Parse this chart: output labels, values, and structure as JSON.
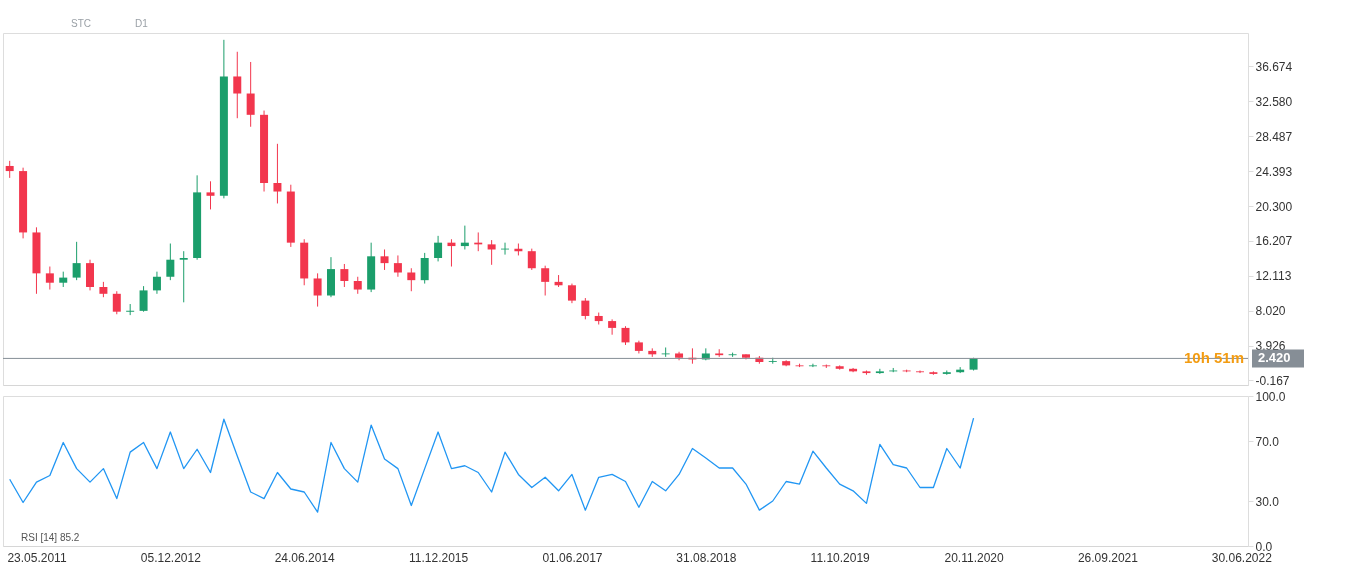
{
  "chart_data": [
    {
      "type": "candlestick",
      "categories": [
        null,
        null,
        "23.05.2011",
        null,
        null,
        null,
        null,
        null,
        null,
        null,
        null,
        null,
        "05.12.2012",
        null,
        null,
        null,
        null,
        null,
        null,
        null,
        null,
        null,
        "24.06.2014",
        null,
        null,
        null,
        null,
        null,
        null,
        null,
        null,
        null,
        "11.12.2015",
        null,
        null,
        null,
        null,
        null,
        null,
        null,
        null,
        null,
        "01.06.2017",
        null,
        null,
        null,
        null,
        null,
        null,
        null,
        null,
        null,
        "31.08.2018",
        null,
        null,
        null,
        null,
        null,
        null,
        null,
        null,
        null,
        "11.10.2019",
        null,
        null,
        null,
        null,
        null,
        null,
        null,
        null,
        null,
        "20.11.2020",
        null,
        null,
        null,
        null,
        null,
        null,
        null,
        null,
        null,
        "26.09.2021",
        null,
        null,
        null,
        null,
        null,
        null,
        null,
        null,
        null,
        "30.06.2022"
      ],
      "ohlc": [
        [
          25.0,
          25.6,
          23.6,
          24.4
        ],
        [
          24.4,
          24.8,
          16.5,
          17.2
        ],
        [
          17.2,
          17.8,
          10.0,
          12.4
        ],
        [
          12.4,
          13.2,
          10.5,
          11.3
        ],
        [
          11.3,
          12.6,
          10.8,
          11.9
        ],
        [
          11.9,
          16.1,
          11.6,
          13.6
        ],
        [
          13.6,
          14.0,
          10.4,
          10.8
        ],
        [
          10.8,
          11.4,
          9.6,
          10.0
        ],
        [
          10.0,
          10.3,
          7.6,
          7.9
        ],
        [
          7.9,
          8.8,
          7.5,
          8.0
        ],
        [
          8.0,
          10.9,
          7.9,
          10.4
        ],
        [
          10.4,
          12.6,
          10.0,
          12.0
        ],
        [
          12.0,
          15.9,
          11.6,
          14.0
        ],
        [
          14.0,
          15.0,
          9.0,
          14.2
        ],
        [
          14.2,
          23.9,
          14.0,
          21.9
        ],
        [
          21.9,
          23.2,
          19.9,
          21.5
        ],
        [
          21.5,
          39.8,
          21.2,
          35.5
        ],
        [
          35.5,
          38.4,
          30.6,
          33.5
        ],
        [
          33.5,
          37.2,
          29.6,
          31.0
        ],
        [
          31.0,
          31.5,
          22.0,
          23.0
        ],
        [
          23.0,
          27.6,
          20.6,
          22.0
        ],
        [
          22.0,
          22.8,
          15.5,
          16.0
        ],
        [
          16.0,
          16.4,
          11.0,
          11.8
        ],
        [
          11.8,
          12.4,
          8.5,
          9.8
        ],
        [
          9.8,
          14.3,
          9.6,
          12.9
        ],
        [
          12.9,
          13.5,
          10.8,
          11.5
        ],
        [
          11.5,
          12.0,
          10.0,
          10.5
        ],
        [
          10.5,
          16.0,
          10.2,
          14.4
        ],
        [
          14.4,
          15.2,
          12.8,
          13.6
        ],
        [
          13.6,
          14.5,
          12.0,
          12.5
        ],
        [
          12.5,
          13.0,
          10.3,
          11.6
        ],
        [
          11.6,
          14.8,
          11.2,
          14.2
        ],
        [
          14.2,
          16.8,
          13.8,
          16.0
        ],
        [
          16.0,
          16.4,
          13.2,
          15.6
        ],
        [
          15.6,
          18.0,
          15.2,
          16.0
        ],
        [
          16.0,
          17.2,
          15.0,
          15.8
        ],
        [
          15.8,
          16.3,
          13.4,
          15.2
        ],
        [
          15.2,
          16.0,
          14.6,
          15.3
        ],
        [
          15.3,
          15.9,
          14.5,
          15.0
        ],
        [
          15.0,
          15.3,
          12.8,
          13.0
        ],
        [
          13.0,
          13.3,
          9.8,
          11.4
        ],
        [
          11.4,
          12.2,
          10.8,
          11.0
        ],
        [
          11.0,
          11.2,
          8.9,
          9.2
        ],
        [
          9.2,
          9.5,
          7.0,
          7.4
        ],
        [
          7.4,
          7.8,
          6.4,
          6.8
        ],
        [
          6.8,
          7.0,
          5.2,
          6.0
        ],
        [
          6.0,
          6.2,
          4.0,
          4.3
        ],
        [
          4.3,
          4.5,
          3.0,
          3.3
        ],
        [
          3.3,
          3.6,
          2.6,
          2.9
        ],
        [
          2.9,
          3.7,
          2.6,
          3.0
        ],
        [
          3.0,
          3.2,
          2.2,
          2.5
        ],
        [
          2.5,
          3.6,
          1.8,
          2.3
        ],
        [
          2.3,
          3.6,
          2.2,
          3.0
        ],
        [
          3.0,
          3.5,
          2.6,
          2.8
        ],
        [
          2.8,
          3.1,
          2.6,
          2.9
        ],
        [
          2.9,
          2.9,
          2.3,
          2.5
        ],
        [
          2.5,
          2.7,
          1.8,
          2.0
        ],
        [
          2.0,
          2.5,
          1.8,
          2.1
        ],
        [
          2.1,
          2.2,
          1.5,
          1.6
        ],
        [
          1.6,
          1.8,
          1.4,
          1.5
        ],
        [
          1.5,
          1.8,
          1.4,
          1.6
        ],
        [
          1.6,
          1.7,
          1.3,
          1.5
        ],
        [
          1.5,
          1.6,
          1.1,
          1.2
        ],
        [
          1.2,
          1.3,
          0.8,
          0.9
        ],
        [
          0.9,
          1.0,
          0.5,
          0.7
        ],
        [
          0.7,
          1.2,
          0.6,
          0.9
        ],
        [
          0.9,
          1.3,
          0.8,
          1.0
        ],
        [
          1.0,
          1.1,
          0.8,
          0.9
        ],
        [
          0.9,
          1.0,
          0.7,
          0.8
        ],
        [
          0.8,
          0.9,
          0.5,
          0.6
        ],
        [
          0.6,
          1.0,
          0.5,
          0.8
        ],
        [
          0.8,
          1.4,
          0.7,
          1.1
        ],
        [
          1.1,
          2.5,
          1.0,
          2.42
        ],
        null,
        null,
        null,
        null,
        null,
        null,
        null,
        null,
        null,
        null,
        null,
        null,
        null,
        null,
        null,
        null,
        null,
        null,
        null,
        null
      ],
      "colors": [
        "#f2364d",
        "#f2364d",
        "#f2364d",
        "#f2364d",
        "#1b9e6b",
        "#1b9e6b",
        "#f2364d",
        "#f2364d",
        "#f2364d",
        "#1b9e6b",
        "#1b9e6b",
        "#1b9e6b",
        "#1b9e6b",
        "#1b9e6b",
        "#1b9e6b",
        "#f2364d",
        "#1b9e6b",
        "#f2364d",
        "#f2364d",
        "#f2364d",
        "#f2364d",
        "#f2364d",
        "#f2364d",
        "#f2364d",
        "#1b9e6b",
        "#f2364d",
        "#f2364d",
        "#1b9e6b",
        "#f2364d",
        "#f2364d",
        "#f2364d",
        "#1b9e6b",
        "#1b9e6b",
        "#f2364d",
        "#1b9e6b",
        "#f2364d",
        "#f2364d",
        "#1b9e6b",
        "#f2364d",
        "#f2364d",
        "#f2364d",
        "#f2364d",
        "#f2364d",
        "#f2364d",
        "#f2364d",
        "#f2364d",
        "#f2364d",
        "#f2364d",
        "#f2364d",
        "#1b9e6b",
        "#f2364d",
        "#f2364d",
        "#1b9e6b",
        "#f2364d",
        "#1b9e6b",
        "#f2364d",
        "#f2364d",
        "#1b9e6b",
        "#f2364d",
        "#f2364d",
        "#1b9e6b",
        "#f2364d",
        "#f2364d",
        "#f2364d",
        "#f2364d",
        "#1b9e6b",
        "#1b9e6b",
        "#f2364d",
        "#f2364d",
        "#f2364d",
        "#1b9e6b",
        "#1b9e6b",
        "#1b9e6b",
        null,
        null,
        null,
        null,
        null,
        null,
        null,
        null,
        null,
        null,
        null,
        null,
        null,
        null,
        null,
        null,
        null,
        null,
        null,
        null
      ],
      "ylim": [
        -0.7,
        40.6
      ],
      "yticks": [
        -0.167,
        3.926,
        {
          "value": 8.02,
          "label": "8.020"
        },
        12.113,
        16.207,
        {
          "value": 20.3,
          "label": "20.300"
        },
        24.393,
        28.487,
        {
          "value": 32.58,
          "label": "32.580"
        },
        36.674
      ],
      "ref_lines": [
        {
          "axis": "y",
          "value": 2.42,
          "label": "2.420",
          "color": "#868e96"
        }
      ],
      "annotations": [
        "STC",
        "D1",
        "10h 51m"
      ],
      "tick_labels": "y",
      "grid": false,
      "legend": false
    },
    {
      "type": "line",
      "categories": [
        null,
        null,
        "23.05.2011",
        null,
        null,
        null,
        null,
        null,
        null,
        null,
        null,
        null,
        "05.12.2012",
        null,
        null,
        null,
        null,
        null,
        null,
        null,
        null,
        null,
        "24.06.2014",
        null,
        null,
        null,
        null,
        null,
        null,
        null,
        null,
        null,
        "11.12.2015",
        null,
        null,
        null,
        null,
        null,
        null,
        null,
        null,
        null,
        "01.06.2017",
        null,
        null,
        null,
        null,
        null,
        null,
        null,
        null,
        null,
        "31.08.2018",
        null,
        null,
        null,
        null,
        null,
        null,
        null,
        null,
        null,
        "11.10.2019",
        null,
        null,
        null,
        null,
        null,
        null,
        null,
        null,
        null,
        "20.11.2020",
        null,
        null,
        null,
        null,
        null,
        null,
        null,
        null,
        null,
        "26.09.2021",
        null,
        null,
        null,
        null,
        null,
        null,
        null,
        null,
        null,
        "30.06.2022"
      ],
      "series": [
        {
          "color": "#2196f3",
          "values": [
            44.5,
            29,
            42.6,
            47,
            69,
            51.6,
            42.6,
            51.6,
            31.6,
            62.6,
            69,
            51.6,
            76,
            51.6,
            64.5,
            49,
            84.5,
            60,
            36,
            31.6,
            49,
            38,
            36,
            22.6,
            69,
            51.6,
            42.6,
            80.6,
            58,
            51.6,
            27,
            51.6,
            76,
            51.6,
            53.5,
            49,
            36,
            62.6,
            47.7,
            39,
            45.8,
            36.8,
            47.7,
            23.9,
            45.8,
            47.7,
            43,
            25.8,
            43,
            36.8,
            47.7,
            65,
            58.7,
            52,
            52,
            41.3,
            23.9,
            30,
            43,
            41.3,
            63.2,
            52,
            41.3,
            36.8,
            28.4,
            67.7,
            54.2,
            52,
            39,
            39,
            65,
            52,
            85.2,
            null,
            null,
            null,
            null,
            null,
            null,
            null,
            null,
            null,
            null,
            null,
            null,
            null,
            null,
            null,
            null,
            null,
            null,
            null,
            null
          ]
        }
      ],
      "ylim": [
        0,
        100
      ],
      "yticks": [
        {
          "value": 0,
          "label": "0.0"
        },
        {
          "value": 30,
          "label": "30.0"
        },
        {
          "value": 70,
          "label": "70.0"
        },
        {
          "value": 100,
          "label": "100.0"
        }
      ],
      "annotations": [
        "RSI [14] 85.2"
      ],
      "marker": "none",
      "line_style": "solid",
      "grid": false,
      "legend": false
    }
  ]
}
